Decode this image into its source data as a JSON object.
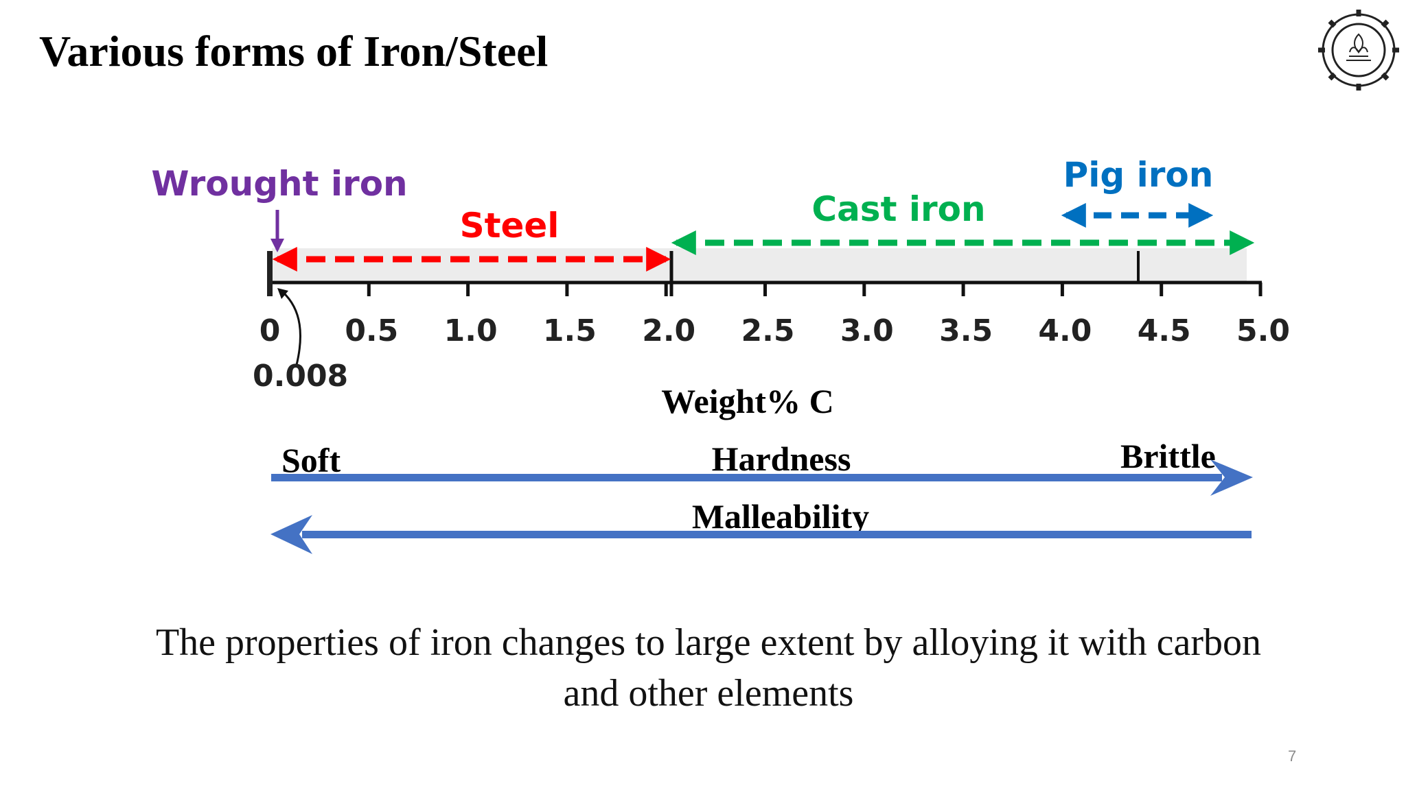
{
  "slide": {
    "title": "Various forms of Iron/Steel",
    "page_number": "7",
    "caption_line1": "The properties of iron changes to large extent by alloying it with carbon",
    "caption_line2": "and other elements"
  },
  "logo": {
    "alt_text_visible": ""
  },
  "diagram": {
    "axis": {
      "ticks": [
        "0",
        "0.5",
        "1.0",
        "1.5",
        "2.0",
        "2.5",
        "3.0",
        "3.5",
        "4.0",
        "4.5",
        "5.0"
      ],
      "tick_values": [
        0,
        0.5,
        1.0,
        1.5,
        2.0,
        2.5,
        3.0,
        3.5,
        4.0,
        4.5,
        5.0
      ],
      "marker_label": "0.008",
      "marker_value": 0.008,
      "label": "Weight% C",
      "range": [
        0,
        5.0
      ]
    },
    "ranges": [
      {
        "name": "Wrought iron",
        "start": 0,
        "end": 0.008,
        "color": "#7030a0"
      },
      {
        "name": "Steel",
        "start": 0.008,
        "end": 2.0,
        "color": "#ff0000"
      },
      {
        "name": "Cast iron",
        "start": 2.0,
        "end": 5.0,
        "color": "#00b050"
      },
      {
        "name": "Pig iron",
        "start": 4.0,
        "end": 4.7,
        "color": "#0070c0"
      }
    ],
    "properties": {
      "hardness_label": "Hardness",
      "hardness_start": "Soft",
      "hardness_end": "Brittle",
      "malleability_label": "Malleability",
      "arrow_color": "#4472c4"
    }
  }
}
